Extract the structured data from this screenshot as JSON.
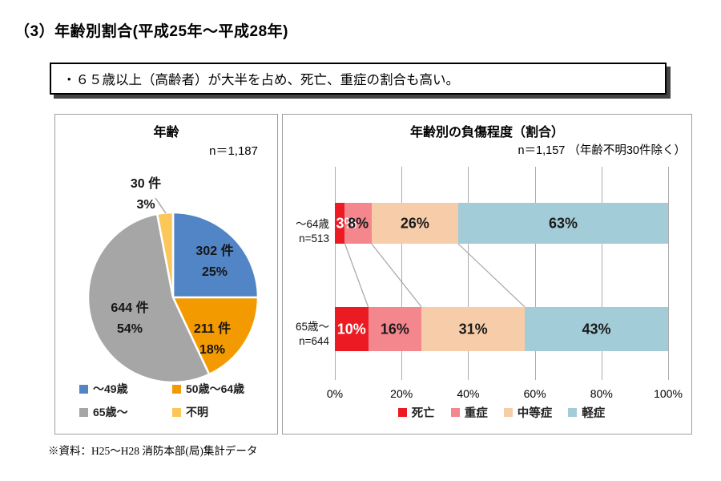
{
  "page": {
    "title": "（3）年齢別割合(平成25年～平成28年)",
    "callout": "・６５歳以上（高齢者）が大半を占め、死亡、重症の割合も高い。",
    "source_note": "※資料：H25～H28 消防本部(局)集計データ"
  },
  "chart_data": [
    {
      "type": "pie",
      "title": "年齢",
      "n_label": "n＝1,187",
      "slices": [
        {
          "label": "～49歳",
          "value": 302,
          "percent": 25,
          "value_label": "302 件",
          "pct_label": "25%",
          "color": "#5185C5"
        },
        {
          "label": "50歳～64歳",
          "value": 211,
          "percent": 18,
          "value_label": "211 件",
          "pct_label": "18%",
          "color": "#F39A00"
        },
        {
          "label": "65歳～",
          "value": 644,
          "percent": 54,
          "value_label": "644 件",
          "pct_label": "54%",
          "color": "#A6A6A6"
        },
        {
          "label": "不明",
          "value": 30,
          "percent": 3,
          "value_label": "30 件",
          "pct_label": "3%",
          "color": "#FBC75B"
        }
      ],
      "legend_position": "bottom"
    },
    {
      "type": "bar",
      "stacked": true,
      "orientation": "horizontal",
      "title": "年齢別の負傷程度（割合）",
      "n_label": "n＝1,157 （年齢不明30件除く）",
      "categories": [
        "～64歳",
        "65歳～"
      ],
      "category_sublabels": [
        "n=513",
        "n=644"
      ],
      "series": [
        {
          "name": "死亡",
          "color": "#EC1B23",
          "values": [
            3,
            10
          ]
        },
        {
          "name": "重症",
          "color": "#F4868E",
          "values": [
            8,
            16
          ]
        },
        {
          "name": "中等症",
          "color": "#F7CDA9",
          "values": [
            26,
            31
          ]
        },
        {
          "name": "軽症",
          "color": "#A3CCD9",
          "values": [
            63,
            43
          ]
        }
      ],
      "xlim": [
        0,
        100
      ],
      "x_ticks": [
        "0%",
        "20%",
        "40%",
        "60%",
        "80%",
        "100%"
      ],
      "grid": true,
      "legend_position": "bottom"
    }
  ]
}
